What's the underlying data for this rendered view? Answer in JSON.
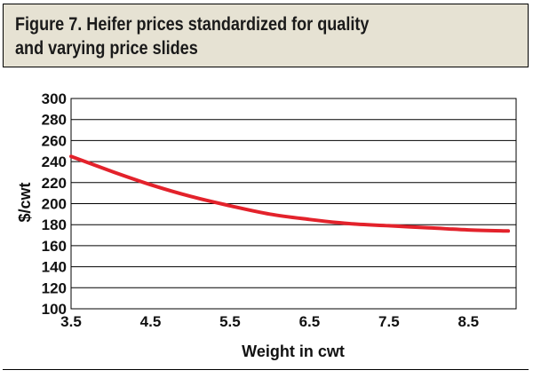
{
  "figure": {
    "title_line1": "Figure 7. Heifer prices standardized for quality",
    "title_line2": "and varying price slides"
  },
  "colors": {
    "title_background": "#e6e2d3",
    "line": "#e3222b",
    "grid": "#000000"
  },
  "chart_data": {
    "type": "line",
    "title": "Figure 7. Heifer prices standardized for quality and varying price slides",
    "xlabel": "Weight in cwt",
    "ylabel": "$/cwt",
    "xlim": [
      3.5,
      9.1
    ],
    "ylim": [
      100,
      300
    ],
    "xticks": [
      3.5,
      4.5,
      5.5,
      6.5,
      7.5,
      8.5
    ],
    "xtick_labels": [
      "3.5",
      "4.5",
      "5.5",
      "6.5",
      "7.5",
      "8.5"
    ],
    "yticks": [
      100,
      120,
      140,
      160,
      180,
      200,
      220,
      240,
      260,
      280,
      300
    ],
    "ytick_labels": [
      "100",
      "120",
      "140",
      "160",
      "180",
      "200",
      "220",
      "240",
      "260",
      "280",
      "300"
    ],
    "grid": "horizontal",
    "legend": "none",
    "series": [
      {
        "color": "#e3222b",
        "x": [
          3.5,
          4.0,
          4.5,
          5.0,
          5.5,
          6.0,
          6.5,
          7.0,
          7.5,
          8.0,
          8.5,
          9.0
        ],
        "y": [
          245,
          231,
          218,
          207,
          198,
          190,
          185,
          181,
          179,
          177,
          175,
          174
        ]
      }
    ]
  }
}
